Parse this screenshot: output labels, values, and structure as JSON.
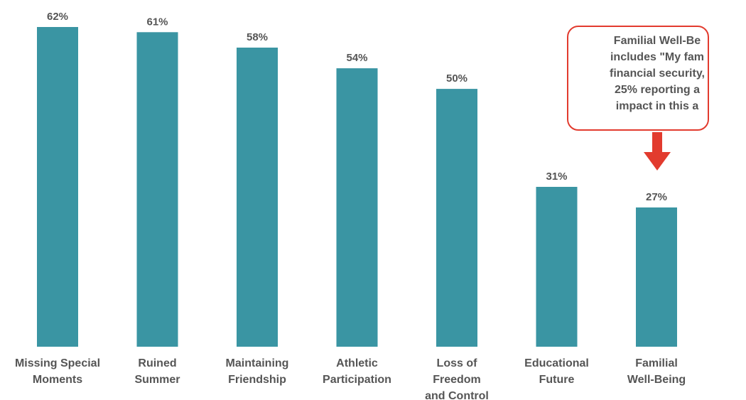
{
  "chart_data": {
    "type": "bar",
    "categories": [
      "Missing Special\nMoments",
      "Ruined\nSummer",
      "Maintaining\nFriendship",
      "Athletic\nParticipation",
      "Loss of\nFreedom\nand Control",
      "Educational\nFuture",
      "Familial\nWell-Being"
    ],
    "values": [
      62,
      61,
      58,
      54,
      50,
      31,
      27
    ],
    "value_labels": [
      "62%",
      "61%",
      "58%",
      "54%",
      "50%",
      "31%",
      "27%"
    ],
    "unit": "%",
    "ylim": [
      0,
      62
    ],
    "grid": false,
    "bar_color": "#3a95a3"
  },
  "callout": {
    "text": "Familial Well-Be\nincludes \"My fam\nfinancial security,\n25% reporting a\nimpact in this a",
    "color": "#e23b2e"
  }
}
